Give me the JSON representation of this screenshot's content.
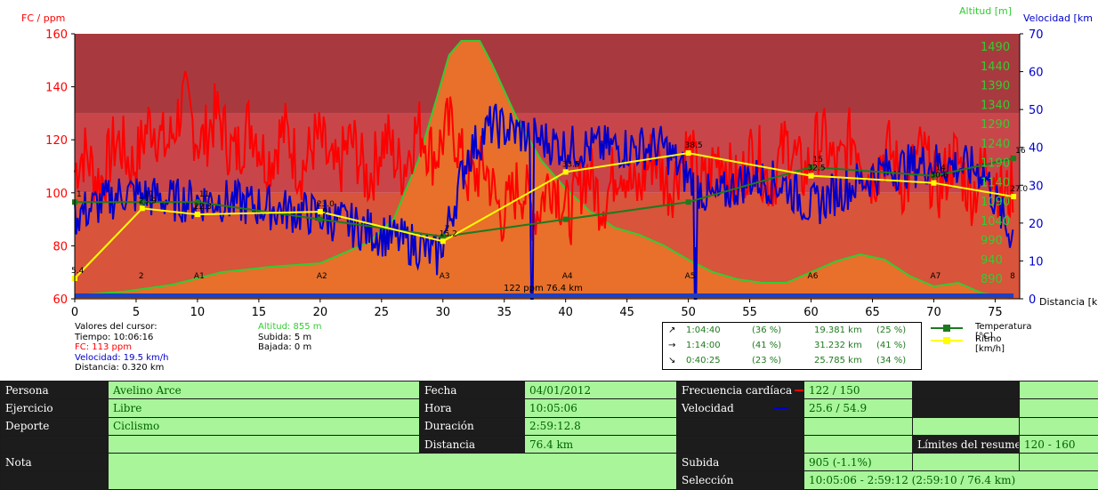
{
  "colors": {
    "hr": "#ff0000",
    "speed": "#0000cc",
    "altitude": "#33cc33",
    "temperature": "#1e7a1e",
    "pace": "#ffff00",
    "zone_top": "#a83a3f",
    "zone_mid": "#c8464a",
    "zone_low": "#d8543a",
    "altitude_fill": "#e8702a",
    "label_bg": "#1c1c1c",
    "value_bg": "#a8f59a"
  },
  "chart_data": {
    "type": "line",
    "left_axis": {
      "title": "FC / ppm",
      "min": 60,
      "max": 160,
      "ticks": [
        "60",
        "80",
        "100",
        "120",
        "140",
        "160"
      ]
    },
    "right_axis_altitude": {
      "title": "Altitud [m]",
      "ticks": [
        "890",
        "940",
        "990",
        "1040",
        "1090",
        "1140",
        "1190",
        "1240",
        "1290",
        "1340",
        "1390",
        "1440",
        "1490"
      ]
    },
    "right_axis_speed": {
      "title": "Velocidad [km",
      "min": 0,
      "max": 70,
      "ticks": [
        "0",
        "10",
        "20",
        "30",
        "40",
        "50",
        "60",
        "70"
      ]
    },
    "x_axis": {
      "title": "Distancia [km]",
      "min": 0,
      "max": 77,
      "ticks": [
        "0",
        "5",
        "10",
        "15",
        "20",
        "25",
        "30",
        "35",
        "40",
        "45",
        "50",
        "55",
        "60",
        "65",
        "70",
        "75"
      ]
    },
    "series": [
      {
        "name": "Temperatura [°C]",
        "x": [
          0,
          5.5,
          10,
          20,
          30,
          40,
          50,
          60,
          70,
          76.5
        ],
        "y": [
          96.5,
          96.5,
          96.5,
          90,
          83.5,
          90,
          96.5,
          109.7,
          106.4,
          113
        ]
      },
      {
        "name": "Ritmo [km/h]",
        "x": [
          0,
          5.5,
          10,
          20,
          30,
          40,
          50,
          60,
          70,
          76.5
        ],
        "y": [
          5.4,
          23.9,
          22.3,
          23.0,
          15.2,
          33.5,
          38.5,
          32.5,
          30.6,
          27.0
        ]
      }
    ],
    "point_labels_temperature": [
      "1",
      "11",
      "11",
      "9",
      "7",
      "",
      "",
      "15",
      "14",
      "16"
    ],
    "point_labels_pace": [
      "5.4",
      "23.9",
      "22.3",
      "23.0",
      "15.2",
      "33.5",
      "38.5",
      "32.5",
      "30.6",
      "27.0"
    ],
    "lap_markers": [
      "2",
      "A1",
      "A2",
      "A3",
      "A4",
      "A5",
      "A6",
      "A7",
      "8"
    ],
    "cursor_annotation": "122 ppm 76.4 km"
  },
  "cursor_panel": {
    "lines": [
      "Valores del cursor:",
      "Tiempo: 10:06:16",
      "FC: 113 ppm",
      "Velocidad: 19.5 km/h",
      "Distancia: 0.320 km"
    ],
    "altitude": "Altitud: 855 m",
    "climb": "Subida: 5 m",
    "descent": "Bajada: 0 m"
  },
  "slope_summary": [
    {
      "arrow": "↗",
      "time": "1:04:40",
      "pct": "(36 %)",
      "dist": "19.381 km",
      "dpct": "(25 %)"
    },
    {
      "arrow": "→",
      "time": "1:14:00",
      "pct": "(41 %)",
      "dist": "31.232 km",
      "dpct": "(41 %)"
    },
    {
      "arrow": "↘",
      "time": "0:40:25",
      "pct": "(23 %)",
      "dist": "25.785 km",
      "dpct": "(34 %)"
    }
  ],
  "legend": {
    "temperature": "Temperatura [°C]",
    "pace": "Ritmo [km/h]"
  },
  "table": {
    "persona_label": "Persona",
    "persona": "Avelino Arce",
    "ejercicio_label": "Ejercicio",
    "ejercicio": "Libre",
    "deporte_label": "Deporte",
    "deporte": "Ciclismo",
    "nota_label": "Nota",
    "fecha_label": "Fecha",
    "fecha": "04/01/2012",
    "hora_label": "Hora",
    "hora": "10:05:06",
    "duracion_label": "Duración",
    "duracion": "2:59:12.8",
    "distancia_label": "Distancia",
    "distancia": "76.4 km",
    "fc_label": "Frecuencia cardíaca",
    "fc": "122 / 150",
    "vel_label": "Velocidad",
    "vel": "25.6 / 54.9",
    "limites_label": "Límites del resumen",
    "limites": "120 - 160",
    "subida_label": "Subida",
    "subida": "905 (-1.1%)",
    "seleccion_label": "Selección",
    "seleccion": "10:05:06 - 2:59:12 (2:59:10 / 76.4 km)"
  }
}
